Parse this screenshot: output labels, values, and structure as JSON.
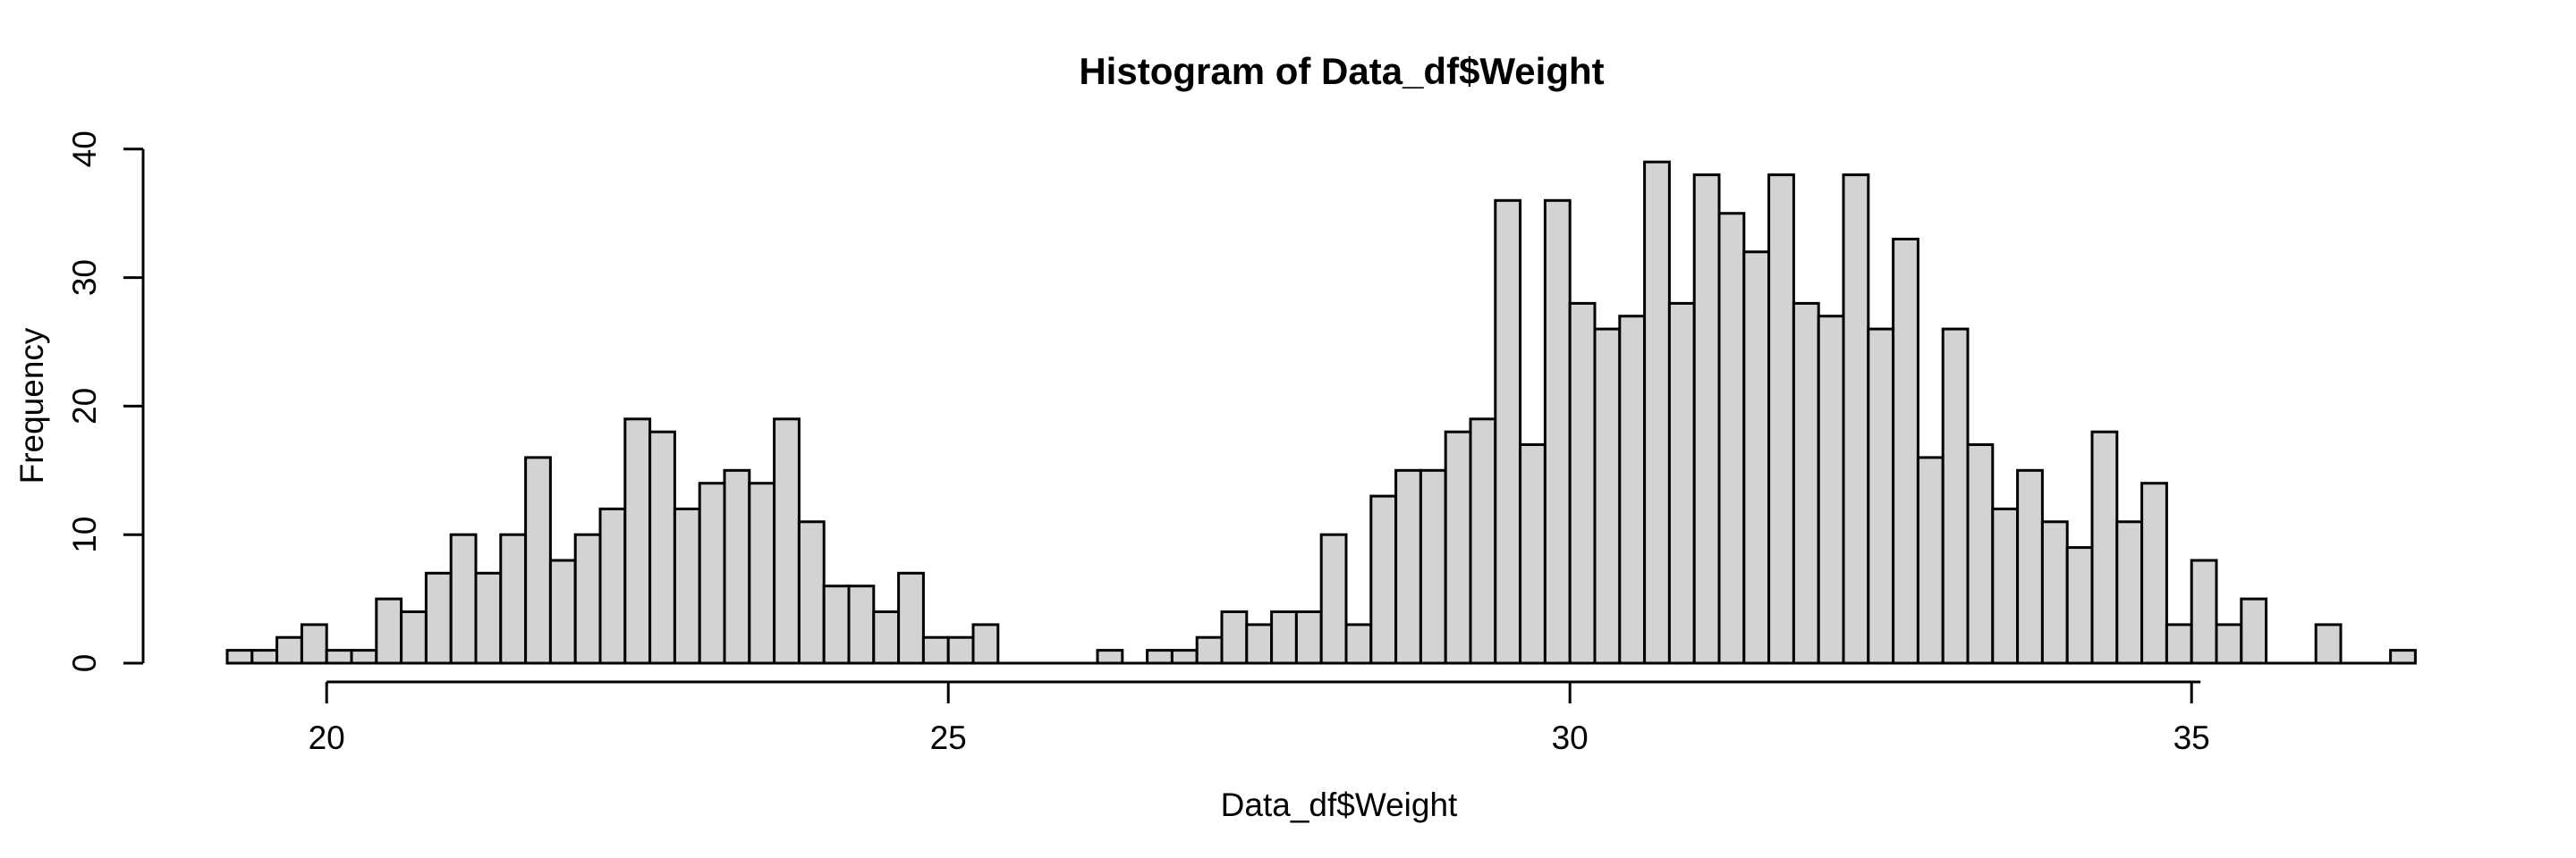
{
  "chart_data": {
    "type": "bar",
    "subtype": "histogram",
    "title": "Histogram of Data_df$Weight",
    "xlabel": "Data_df$Weight",
    "ylabel": "Frequency",
    "bin_start": 19.2,
    "bin_width": 0.2,
    "counts": [
      1,
      1,
      2,
      3,
      1,
      1,
      5,
      4,
      7,
      10,
      7,
      10,
      16,
      8,
      10,
      12,
      19,
      18,
      12,
      14,
      15,
      14,
      19,
      11,
      6,
      6,
      4,
      7,
      2,
      2,
      3,
      0,
      0,
      0,
      0,
      1,
      0,
      1,
      1,
      2,
      4,
      3,
      4,
      4,
      10,
      3,
      13,
      15,
      15,
      18,
      19,
      36,
      17,
      36,
      28,
      26,
      27,
      39,
      28,
      38,
      35,
      32,
      38,
      28,
      27,
      38,
      26,
      33,
      16,
      26,
      17,
      12,
      15,
      11,
      9,
      18,
      11,
      14,
      3,
      8,
      3,
      5,
      0,
      0,
      3,
      0,
      0,
      1
    ],
    "x_ticks": [
      20,
      25,
      30,
      35
    ],
    "y_ticks": [
      0,
      10,
      20,
      30,
      40
    ],
    "xlim": [
      19.2,
      36.8
    ],
    "ylim": [
      0,
      40
    ],
    "grid": false,
    "legend_position": "none",
    "colors": {
      "bar_fill": "#d3d3d3",
      "bar_stroke": "#000000",
      "axis": "#000000",
      "text": "#000000",
      "background": "#ffffff"
    }
  }
}
